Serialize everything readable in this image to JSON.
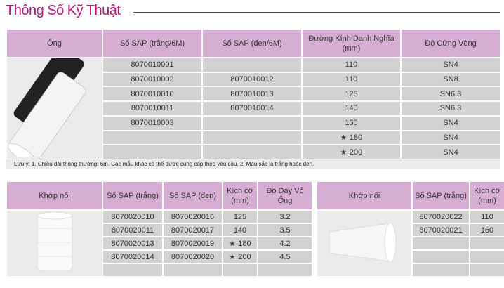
{
  "title": "Thông Số Kỹ Thuật",
  "pipe_table": {
    "headers": [
      "Ống",
      "Số SAP (trắng/6M)",
      "Số SAP (đen/6M)",
      "Đường Kính Danh Nghĩa (mm)",
      "Độ Cứng Vòng"
    ],
    "rows": [
      {
        "white": "8070010001",
        "black": "",
        "dn": "110",
        "star": false,
        "sn": "SN4"
      },
      {
        "white": "8070010002",
        "black": "8070010012",
        "dn": "110",
        "star": false,
        "sn": "SN8"
      },
      {
        "white": "8070010010",
        "black": "8070010013",
        "dn": "125",
        "star": false,
        "sn": "SN6.3"
      },
      {
        "white": "8070010011",
        "black": "8070010014",
        "dn": "140",
        "star": false,
        "sn": "SN6.3"
      },
      {
        "white": "8070010003",
        "black": "",
        "dn": "160",
        "star": false,
        "sn": "SN4"
      },
      {
        "white": "",
        "black": "",
        "dn": "180",
        "star": true,
        "sn": "SN4"
      },
      {
        "white": "",
        "black": "",
        "dn": "200",
        "star": true,
        "sn": "SN4"
      }
    ],
    "note": "Lưu ý: 1. Chiều dài thông thường: 6m. Các mẫu khác có thể được cung cấp theo yêu cầu.     2. Màu sắc là trắng hoặc đen."
  },
  "coupling_table": {
    "headers": [
      "Khớp nối",
      "Số SAP (trắng)",
      "Số SAP (đen)",
      "Kích cỡ (mm)",
      "Độ Dày Vỏ Ống"
    ],
    "rows": [
      {
        "white": "8070020010",
        "black": "8070020016",
        "size": "125",
        "star": false,
        "thk": "3.2"
      },
      {
        "white": "8070020011",
        "black": "8070020017",
        "size": "140",
        "star": false,
        "thk": "3.5"
      },
      {
        "white": "8070020013",
        "black": "8070020019",
        "size": "180",
        "star": true,
        "thk": "4.2"
      },
      {
        "white": "8070020014",
        "black": "8070020020",
        "size": "200",
        "star": true,
        "thk": "4.5"
      },
      {
        "white": "",
        "black": "",
        "size": "",
        "star": false,
        "thk": ""
      }
    ]
  },
  "coupling2_table": {
    "headers": [
      "Khớp nối",
      "Số SAP (trắng)",
      "Kích cỡ (mm)"
    ],
    "rows": [
      {
        "white": "8070020022",
        "size": "110"
      },
      {
        "white": "8070020021",
        "size": "160"
      },
      {
        "white": "",
        "size": ""
      },
      {
        "white": "",
        "size": ""
      },
      {
        "white": "",
        "size": ""
      }
    ]
  },
  "star_glyph": "★"
}
